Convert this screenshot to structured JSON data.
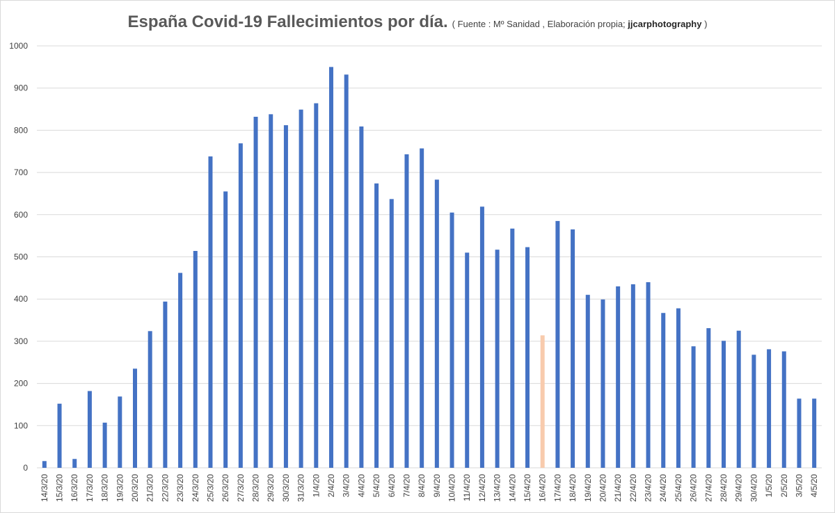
{
  "chart_data": {
    "type": "bar",
    "title": "España Covid-19 Fallecimientos por día.",
    "subtitle_open": "( Fuente : Mº Sanidad , Elaboración propia; ",
    "subtitle_author": "jjcarphotography",
    "subtitle_close": ")",
    "xlabel": "",
    "ylabel": "",
    "ylim": [
      0,
      1000
    ],
    "yticks": [
      "0",
      "100",
      "200",
      "300",
      "400",
      "500",
      "600",
      "700",
      "800",
      "900",
      "1000"
    ],
    "grid": true,
    "legend": "none",
    "colors": {
      "bar": "#4472c4",
      "highlight": "#f8cbad",
      "grid": "#d9d9d9",
      "axis_text": "#404040"
    },
    "highlight_category": "16/4/20",
    "categories": [
      "14/3/20",
      "15/3/20",
      "16/3/20",
      "17/3/20",
      "18/3/20",
      "19/3/20",
      "20/3/20",
      "21/3/20",
      "22/3/20",
      "23/3/20",
      "24/3/20",
      "25/3/20",
      "26/3/20",
      "27/3/20",
      "28/3/20",
      "29/3/20",
      "30/3/20",
      "31/3/20",
      "1/4/20",
      "2/4/20",
      "3/4/20",
      "4/4/20",
      "5/4/20",
      "6/4/20",
      "7/4/20",
      "8/4/20",
      "9/4/20",
      "10/4/20",
      "11/4/20",
      "12/4/20",
      "13/4/20",
      "14/4/20",
      "15/4/20",
      "16/4/20",
      "17/4/20",
      "18/4/20",
      "19/4/20",
      "20/4/20",
      "21/4/20",
      "22/4/20",
      "23/4/20",
      "24/4/20",
      "25/4/20",
      "26/4/20",
      "27/4/20",
      "28/4/20",
      "29/4/20",
      "30/4/20",
      "1/5/20",
      "2/5/20",
      "3/5/20",
      "4/5/20"
    ],
    "values": [
      16,
      152,
      21,
      182,
      107,
      169,
      235,
      324,
      394,
      462,
      514,
      738,
      655,
      769,
      832,
      838,
      812,
      849,
      864,
      950,
      932,
      809,
      674,
      637,
      743,
      757,
      683,
      605,
      510,
      619,
      517,
      567,
      523,
      314,
      585,
      565,
      410,
      399,
      430,
      435,
      440,
      367,
      378,
      288,
      331,
      301,
      325,
      268,
      281,
      276,
      164,
      164
    ]
  }
}
